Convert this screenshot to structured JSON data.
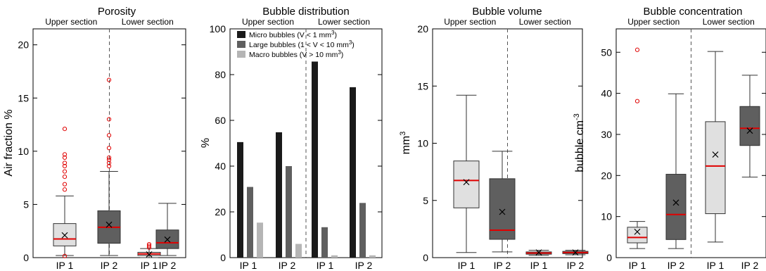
{
  "figure": {
    "background": "#ffffff"
  },
  "chart_data": [
    {
      "type": "box",
      "title": "Porosity",
      "ylabel": "Air fraction %",
      "ylim": [
        0,
        21.5
      ],
      "yticks": [
        0,
        5,
        10,
        15,
        20
      ],
      "sections": [
        "Upper section",
        "Lower section"
      ],
      "categories": [
        "IP 1",
        "IP 2",
        "IP 1",
        "IP 2"
      ],
      "colors": {
        "light_box": "#e0e0e0",
        "dark_box": "#5f5f5f",
        "median": "#e00000",
        "outlier": "#e00000"
      },
      "boxes": [
        {
          "label": "IP 1",
          "section": "Upper section",
          "min": 0.2,
          "q1": 1.1,
          "median": 1.75,
          "q3": 3.2,
          "max": 5.8,
          "mean": 2.1,
          "outliers": [
            6.4,
            6.9,
            7.6,
            8.1,
            8.6,
            8.9,
            9.4,
            9.7,
            12.1,
            0.15
          ],
          "shade": "light"
        },
        {
          "label": "IP 2",
          "section": "Upper section",
          "min": 0.2,
          "q1": 1.35,
          "median": 2.85,
          "q3": 4.4,
          "max": 8.1,
          "mean": 3.1,
          "outliers": [
            8.6,
            8.9,
            9.2,
            9.4,
            10.3,
            11.5,
            13.0,
            16.7
          ],
          "shade": "dark"
        },
        {
          "label": "IP 1",
          "section": "Lower section",
          "min": 0.0,
          "q1": 0.2,
          "median": 0.35,
          "q3": 0.5,
          "max": 0.85,
          "mean": 0.3,
          "outliers": [
            0.95,
            1.1,
            1.25
          ],
          "shade": "light"
        },
        {
          "label": "IP 2",
          "section": "Lower section",
          "min": 0.2,
          "q1": 0.85,
          "median": 1.4,
          "q3": 2.6,
          "max": 5.1,
          "mean": 1.7,
          "outliers": [],
          "shade": "dark"
        }
      ]
    },
    {
      "type": "bar",
      "title": "Bubble distribution",
      "ylabel": "%",
      "ylim": [
        0,
        100
      ],
      "yticks": [
        0,
        20,
        40,
        60,
        80,
        100
      ],
      "sections": [
        "Upper section",
        "Lower section"
      ],
      "categories": [
        "IP 1",
        "IP 2",
        "IP 1",
        "IP 2"
      ],
      "series": [
        {
          "name": "Micro bubbles (V < 1 mm",
          "sup": "3",
          "tail": ")",
          "color": "#1a1a1a",
          "values": [
            50.5,
            54.8,
            85.7,
            74.5
          ]
        },
        {
          "name": "Large bubbles (1 < V < 10 mm",
          "sup": "3",
          "tail": ")",
          "color": "#5f5f5f",
          "values": [
            30.9,
            40.0,
            13.3,
            23.9
          ]
        },
        {
          "name": "Macro bubbles (V > 10 mm",
          "sup": "3",
          "tail": ")",
          "color": "#b5b5b5",
          "values": [
            15.3,
            6.0,
            1.0,
            1.0
          ]
        }
      ],
      "legend": "top-left"
    },
    {
      "type": "box",
      "title": "Bubble volume",
      "ylabel": "mm",
      "ylabel_sup": "3",
      "ylim": [
        0,
        20
      ],
      "yticks": [
        0,
        5,
        10,
        15,
        20
      ],
      "sections": [
        "Upper section",
        "Lower section"
      ],
      "categories": [
        "IP 1",
        "IP 2",
        "IP 1",
        "IP 2"
      ],
      "boxes": [
        {
          "label": "IP 1",
          "section": "Upper section",
          "min": 0.45,
          "q1": 4.35,
          "median": 6.75,
          "q3": 8.45,
          "max": 14.2,
          "mean": 6.6,
          "outliers": [],
          "shade": "light"
        },
        {
          "label": "IP 2",
          "section": "Upper section",
          "min": 0.5,
          "q1": 1.6,
          "median": 2.4,
          "q3": 6.9,
          "max": 9.3,
          "mean": 4.0,
          "outliers": [],
          "shade": "dark"
        },
        {
          "label": "IP 1",
          "section": "Lower section",
          "min": 0.2,
          "q1": 0.3,
          "median": 0.4,
          "q3": 0.5,
          "max": 0.65,
          "mean": 0.45,
          "outliers": [],
          "shade": "light"
        },
        {
          "label": "IP 2",
          "section": "Lower section",
          "min": 0.25,
          "q1": 0.35,
          "median": 0.45,
          "q3": 0.55,
          "max": 0.65,
          "mean": 0.45,
          "outliers": [],
          "shade": "dark"
        }
      ]
    },
    {
      "type": "box",
      "title": "Bubble concentration",
      "ylabel": "bubble cm",
      "ylabel_sup": "-3",
      "ylim": [
        0,
        55.7
      ],
      "yticks": [
        0,
        10,
        20,
        30,
        40,
        50
      ],
      "sections": [
        "Upper section",
        "Lower section"
      ],
      "categories": [
        "IP 1",
        "IP 2",
        "IP 1",
        "IP 2"
      ],
      "boxes": [
        {
          "label": "IP 1",
          "section": "Upper section",
          "min": 2.2,
          "q1": 3.6,
          "median": 4.9,
          "q3": 7.4,
          "max": 8.8,
          "mean": 6.3,
          "outliers": [
            38.1,
            50.6
          ],
          "shade": "light"
        },
        {
          "label": "IP 2",
          "section": "Upper section",
          "min": 2.2,
          "q1": 4.4,
          "median": 10.5,
          "q3": 20.3,
          "max": 39.9,
          "mean": 13.4,
          "outliers": [],
          "shade": "dark"
        },
        {
          "label": "IP 1",
          "section": "Lower section",
          "min": 3.8,
          "q1": 10.7,
          "median": 22.3,
          "q3": 33.1,
          "max": 50.2,
          "mean": 25.1,
          "outliers": [],
          "shade": "light"
        },
        {
          "label": "IP 2",
          "section": "Lower section",
          "min": 19.6,
          "q1": 27.3,
          "median": 31.5,
          "q3": 36.8,
          "max": 44.4,
          "mean": 30.9,
          "outliers": [],
          "shade": "dark"
        }
      ]
    }
  ]
}
